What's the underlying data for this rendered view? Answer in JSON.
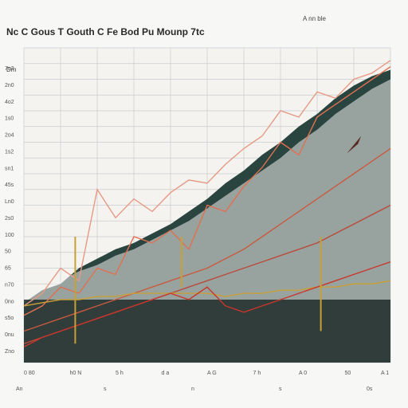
{
  "chart_data": {
    "type": "area",
    "title": "Nc C Gous  T Gouth  C Fe  Bod  Pu  Mounp  7tc",
    "subtitle": "",
    "header_right": "A  nn ble",
    "corner_label": "Dm",
    "xlabel": "",
    "ylabel": "",
    "grid": true,
    "legend": "none",
    "x": [
      0,
      0.5,
      1,
      1.5,
      2,
      2.5,
      3,
      3.5,
      4,
      4.5,
      5,
      5.5,
      6,
      6.5,
      7,
      7.5,
      8,
      8.5,
      9,
      9.5,
      10
    ],
    "xlim": [
      0,
      10
    ],
    "ylim": [
      0,
      100
    ],
    "series": [
      {
        "values": [
          19,
          23,
          25,
          30,
          33,
          36,
          38,
          41,
          44,
          48,
          52,
          57,
          61,
          66,
          70,
          75,
          79,
          84,
          88,
          91,
          93
        ],
        "color": "#1f3a35",
        "style": "area"
      },
      {
        "values": [
          21,
          24,
          26,
          29,
          31,
          34,
          36,
          39,
          42,
          45,
          49,
          53,
          57,
          61,
          65,
          70,
          74,
          79,
          83,
          87,
          90
        ],
        "color": "#f3f2ee",
        "style": "area"
      },
      {
        "values": [
          15,
          18,
          24,
          22,
          30,
          28,
          40,
          38,
          42,
          36,
          50,
          48,
          56,
          62,
          70,
          66,
          78,
          82,
          86,
          90,
          94
        ],
        "color": "#e07050",
        "style": "line"
      },
      {
        "values": [
          18,
          22,
          30,
          26,
          55,
          46,
          52,
          48,
          54,
          58,
          57,
          63,
          68,
          72,
          80,
          78,
          86,
          84,
          90,
          92,
          96
        ],
        "color": "#e69a85",
        "style": "line"
      },
      {
        "values": [
          10,
          12,
          14,
          16,
          18,
          20,
          22,
          24,
          26,
          28,
          30,
          33,
          36,
          40,
          44,
          48,
          52,
          56,
          60,
          64,
          68
        ],
        "color": "#c95a40",
        "style": "line"
      },
      {
        "values": [
          6,
          8,
          10,
          12,
          14,
          16,
          18,
          20,
          22,
          24,
          26,
          28,
          30,
          32,
          34,
          36,
          38,
          41,
          44,
          47,
          50
        ],
        "color": "#b94a3a",
        "style": "line"
      },
      {
        "values": [
          18,
          19,
          20,
          20,
          21,
          21,
          22,
          22,
          22,
          22,
          22,
          21,
          22,
          22,
          23,
          23,
          24,
          24,
          25,
          25,
          26
        ],
        "color": "#c8a038",
        "style": "line"
      },
      {
        "values": [
          5,
          8,
          10,
          12,
          14,
          16,
          18,
          20,
          22,
          20,
          24,
          18,
          16,
          18,
          20,
          22,
          24,
          26,
          28,
          30,
          32
        ],
        "color": "#c8362b",
        "style": "line"
      }
    ],
    "annotations": [
      {
        "x": 9.2,
        "y": 72,
        "text": "arrow",
        "color": "#5a2a22"
      }
    ],
    "tick_labels_y": [
      "7o3",
      "2n0",
      "4o2",
      "1s0",
      "2o4",
      "1s2",
      "sn1",
      "45s",
      "Ln0",
      "2s0",
      "100",
      "50",
      "65",
      "n70",
      "0no",
      "s5o",
      "0nu",
      "Zno"
    ],
    "tick_labels_x": [
      "0 80",
      "h0 N",
      "5 h",
      "d a",
      "A G",
      "7 h",
      "A 0",
      "50",
      "A 1"
    ],
    "tick_labels_x2": [
      "An",
      "s",
      "n",
      "s",
      "0s"
    ]
  }
}
